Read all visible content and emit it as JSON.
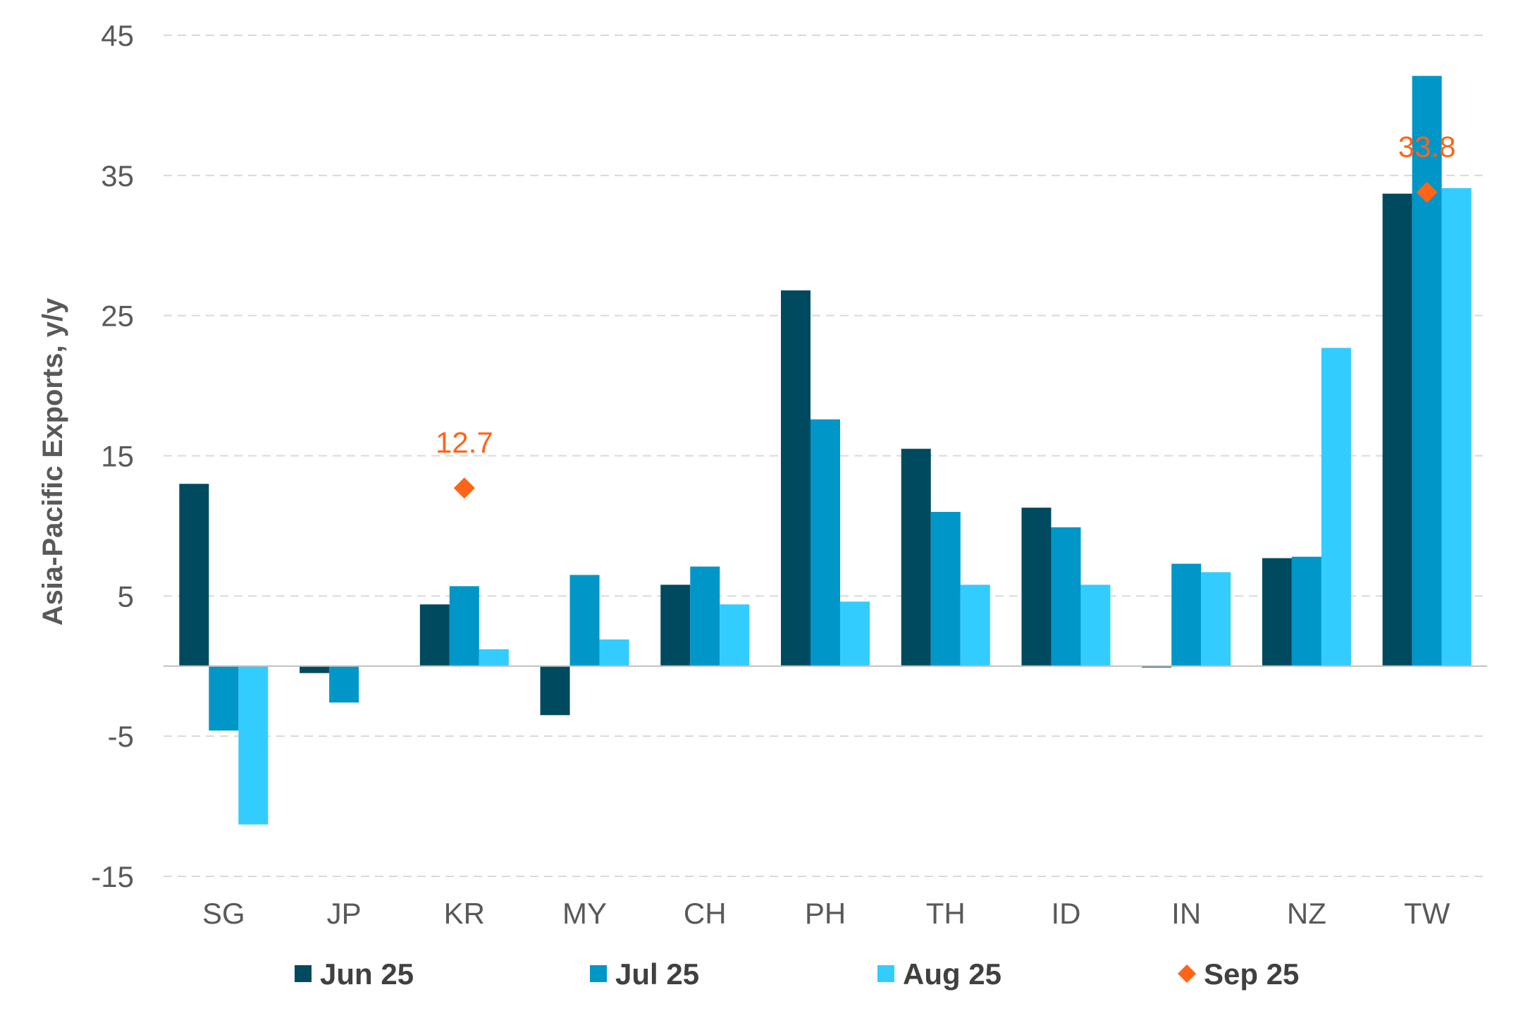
{
  "chart_data": {
    "type": "bar",
    "ylabel": "Asia-Pacific Exports, y/y",
    "xlabel": "",
    "ylim": [
      -15,
      45
    ],
    "yticks": [
      45,
      35,
      25,
      15,
      5,
      -5,
      -15
    ],
    "ytick_labels": [
      "45",
      "35",
      "25",
      "15",
      "5",
      "-5",
      "-15"
    ],
    "grid": true,
    "legend_position": "bottom",
    "categories": [
      "SG",
      "JP",
      "KR",
      "MY",
      "CH",
      "PH",
      "TH",
      "ID",
      "IN",
      "NZ",
      "TW"
    ],
    "series": [
      {
        "name": "Jun 25",
        "kind": "bar",
        "color": "#004a5f",
        "values": [
          13.0,
          -0.5,
          4.4,
          -3.5,
          5.8,
          26.8,
          15.5,
          11.3,
          -0.1,
          7.7,
          33.7
        ]
      },
      {
        "name": "Jul 25",
        "kind": "bar",
        "color": "#0096c8",
        "values": [
          -4.6,
          -2.6,
          5.7,
          6.5,
          7.1,
          17.6,
          11.0,
          9.9,
          7.3,
          7.8,
          42.1
        ]
      },
      {
        "name": "Aug 25",
        "kind": "bar",
        "color": "#33ccff",
        "values": [
          -11.3,
          0.0,
          1.2,
          1.9,
          4.4,
          4.6,
          5.8,
          5.8,
          6.7,
          22.7,
          34.1
        ]
      },
      {
        "name": "Sep 25",
        "kind": "marker",
        "color": "#ff6418",
        "points": [
          {
            "category": "KR",
            "value": 12.7,
            "label": "12.7"
          },
          {
            "category": "TW",
            "value": 33.8,
            "label": "33.8"
          }
        ]
      }
    ]
  }
}
